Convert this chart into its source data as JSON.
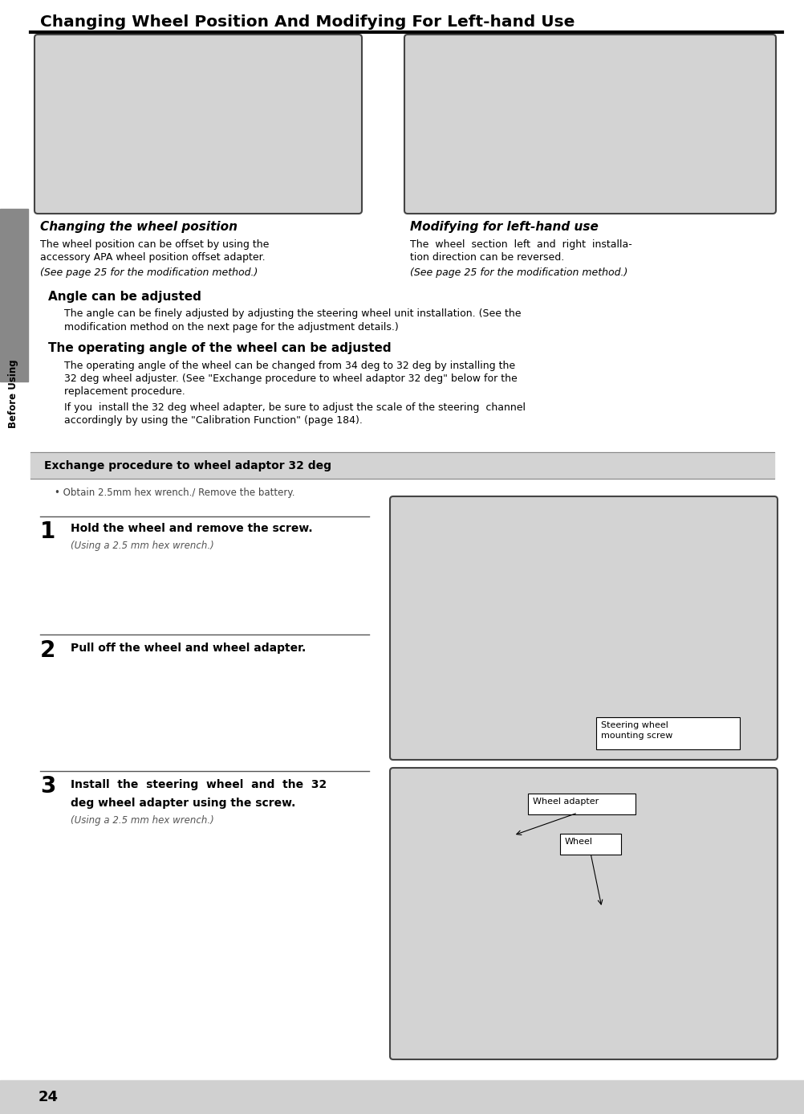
{
  "page_bg": "#ffffff",
  "title": "Changing Wheel Position And Modifying For Left-hand Use",
  "title_fontsize": 14.5,
  "sidebar_color": "#888888",
  "sidebar_text": "Before Using",
  "page_number": "24",
  "left_subheading": "Changing the wheel position",
  "right_subheading": "Modifying for left-hand use",
  "left_body1": "The wheel position can be offset by using the",
  "left_body1b": "accessory APA wheel position offset adapter.",
  "left_body2": "(See page 25 for the modification method.)",
  "right_body1": "The  wheel  section  left  and  right  installa-",
  "right_body1b": "tion direction can be reversed.",
  "right_body2": "(See page 25 for the modification method.)",
  "angle_heading": "Angle can be adjusted",
  "angle_body1": "The angle can be finely adjusted by adjusting the steering wheel unit installation. (See the",
  "angle_body2": "modification method on the next page for the adjustment details.)",
  "operating_heading": "The operating angle of the wheel can be adjusted",
  "op_body1": "The operating angle of the wheel can be changed from 34 deg to 32 deg by installing the",
  "op_body2": "32 deg wheel adjuster. (See \"Exchange procedure to wheel adaptor 32 deg\" below for the",
  "op_body3": "replacement procedure.",
  "op_body4": "If you  install the 32 deg wheel adapter, be sure to adjust the scale of the steering  channel",
  "op_body5": "accordingly by using the \"Calibration Function\" (page 184).",
  "exchange_box_bg": "#d3d3d3",
  "exchange_heading": "Exchange procedure to wheel adaptor 32 deg",
  "exchange_bullet": "• Obtain 2.5mm hex wrench./ Remove the battery.",
  "step1_num": "1",
  "step1_text": "Hold the wheel and remove the screw.",
  "step1_sub": "(Using a 2.5 mm hex wrench.)",
  "step2_num": "2",
  "step2_text": "Pull off the wheel and wheel adapter.",
  "step3_num": "3",
  "step3_line1": "Install  the  steering  wheel  and  the  32",
  "step3_line2": "deg wheel adapter using the screw.",
  "step3_sub": "(Using a 2.5 mm hex wrench.)",
  "label_steering": "Steering wheel\nmounting screw",
  "label_wheel_adapter": "Wheel adapter",
  "label_wheel": "Wheel",
  "img_bg": "#d0d0d0",
  "label_bg": "#ffffff",
  "line_color": "#333333",
  "bottom_bar_color": "#d0d0d0"
}
